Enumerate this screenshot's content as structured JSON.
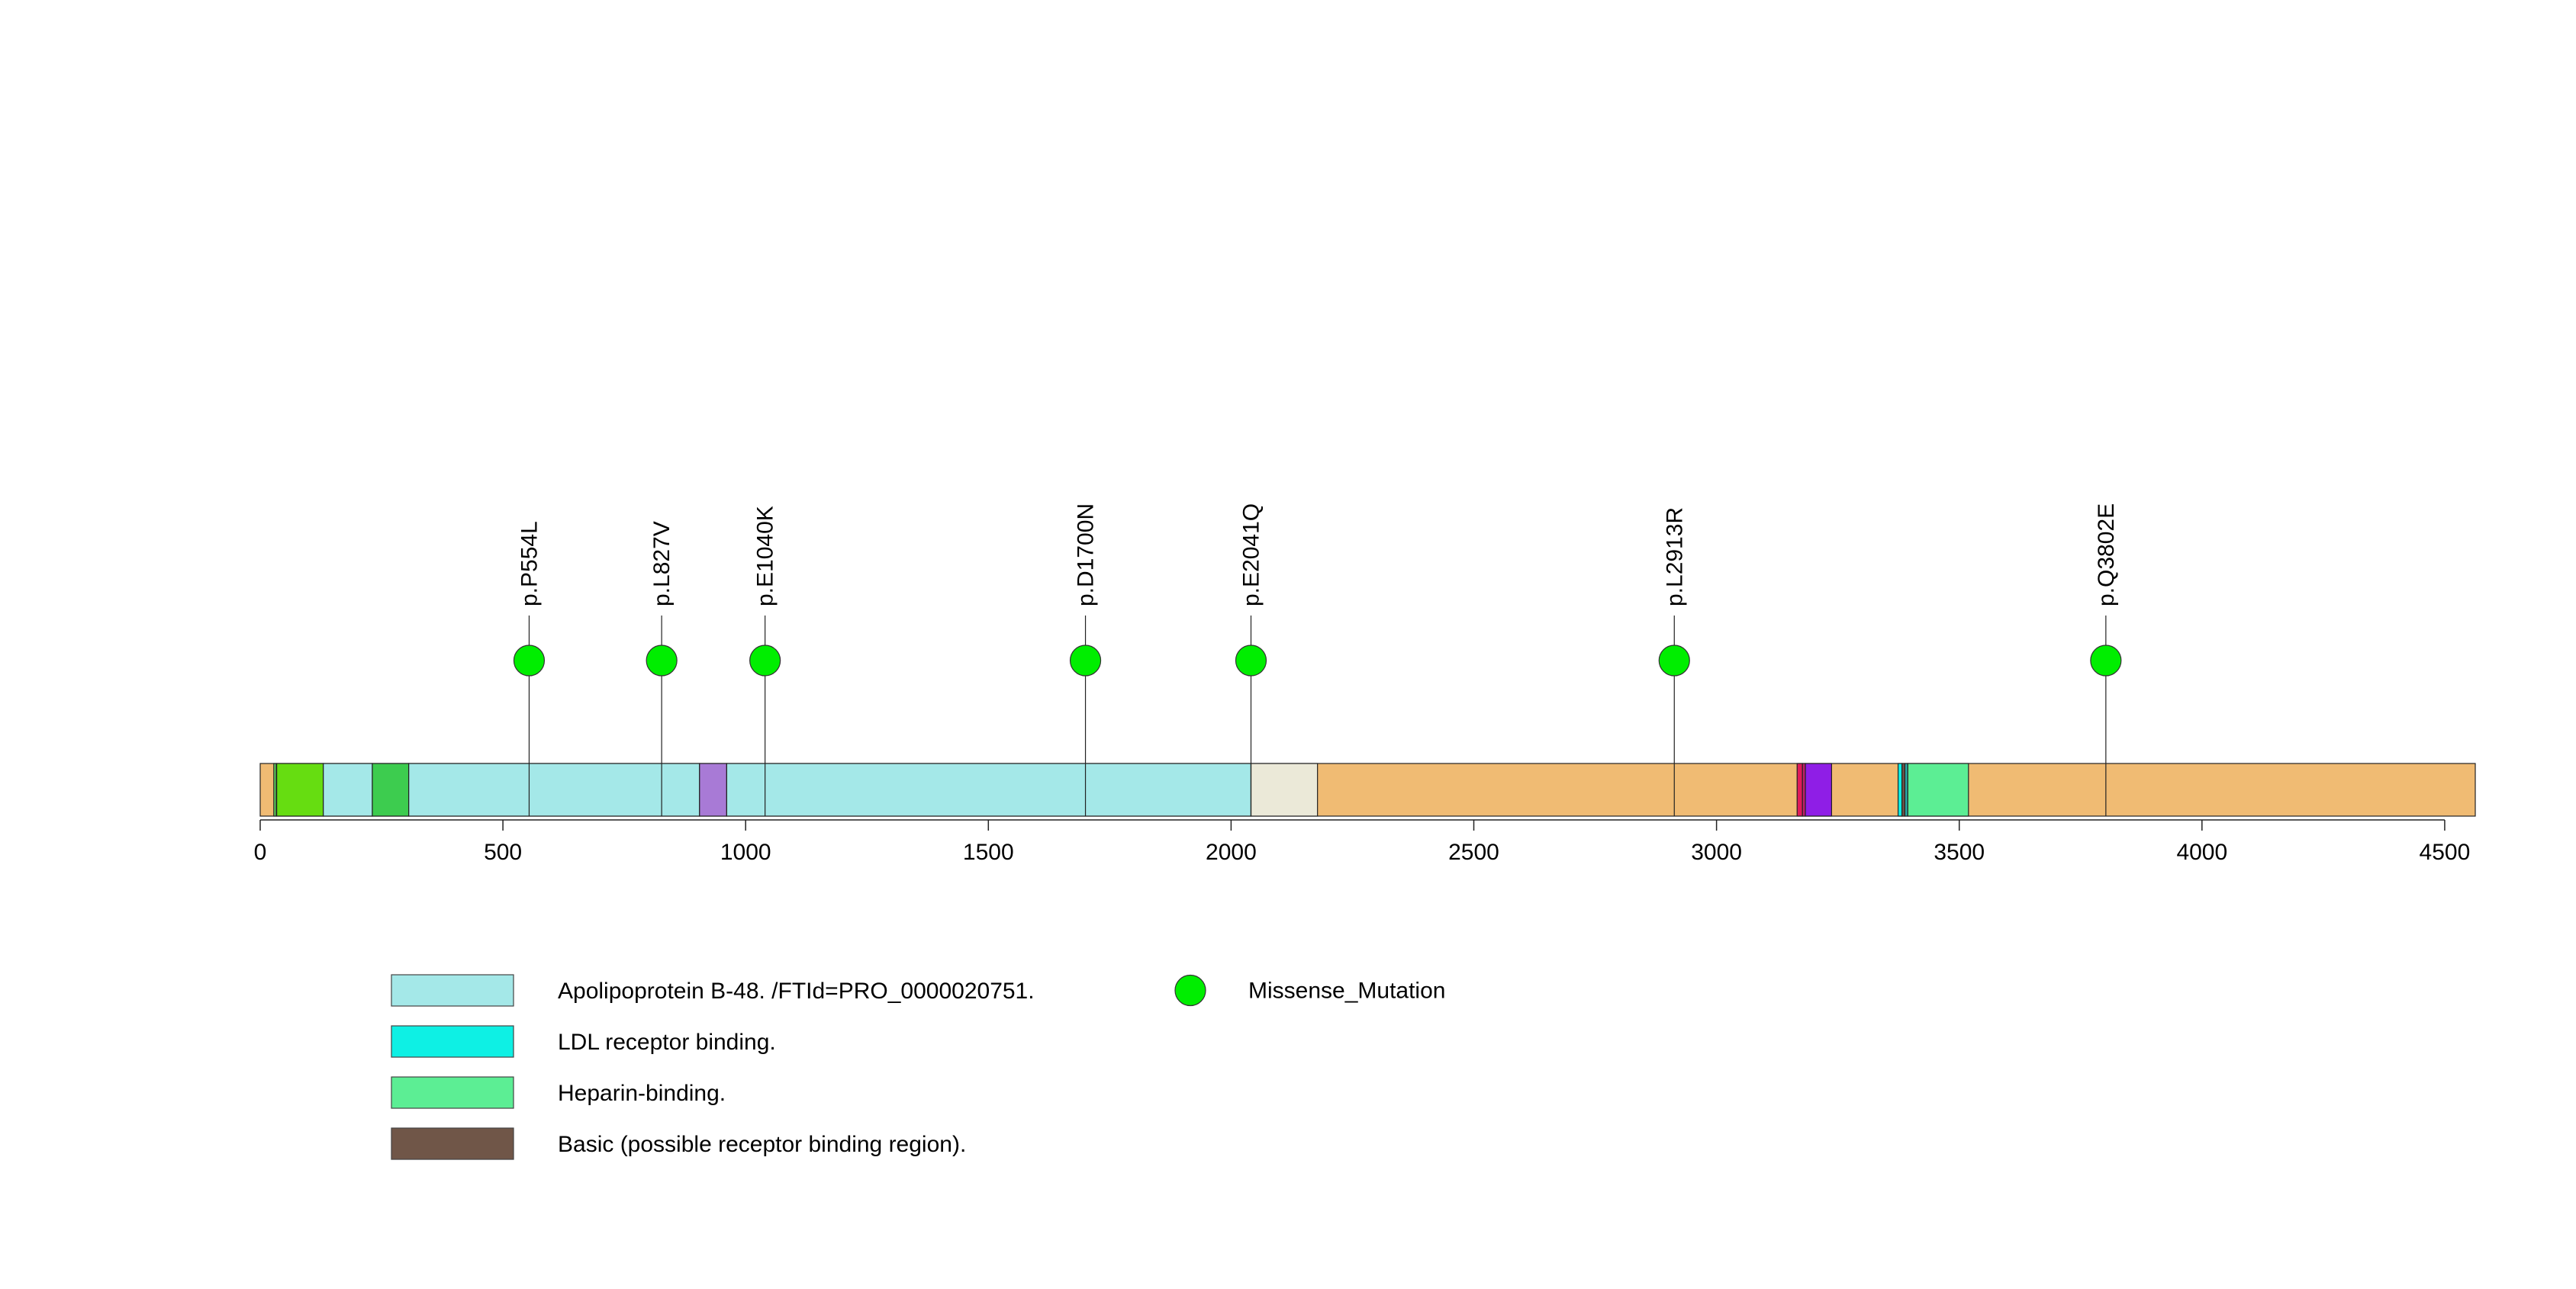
{
  "chart_data": {
    "type": "lollipop",
    "protein_length": 4563,
    "xlim": [
      0,
      4563
    ],
    "x_ticks": [
      0,
      500,
      1000,
      1500,
      2000,
      2500,
      3000,
      3500,
      4000,
      4500
    ],
    "backbone_color": "#f0bb73",
    "domains": [
      {
        "name": "segment-1",
        "start": 28,
        "end": 33,
        "color": "#5fd35f"
      },
      {
        "name": "segment-2",
        "start": 34,
        "end": 130,
        "color": "#66dd11"
      },
      {
        "name": "apolipoprotein-b48-a",
        "start": 130,
        "end": 231,
        "color": "#a4e8e8"
      },
      {
        "name": "segment-3",
        "start": 231,
        "end": 306,
        "color": "#3dcc4f"
      },
      {
        "name": "apolipoprotein-b48-b",
        "start": 306,
        "end": 905,
        "color": "#a4e8e8"
      },
      {
        "name": "segment-4",
        "start": 905,
        "end": 961,
        "color": "#a87ad6"
      },
      {
        "name": "apolipoprotein-b48-c",
        "start": 961,
        "end": 2041,
        "color": "#a4e8e8"
      },
      {
        "name": "segment-5",
        "start": 2041,
        "end": 2178,
        "color": "#ebe9d8"
      },
      {
        "name": "segment-6",
        "start": 3166,
        "end": 3177,
        "color": "#e01b5a"
      },
      {
        "name": "segment-7",
        "start": 3177,
        "end": 3183,
        "color": "#c22068"
      },
      {
        "name": "segment-8",
        "start": 3183,
        "end": 3237,
        "color": "#8f1ee6"
      },
      {
        "name": "ldl-receptor-binding",
        "start": 3374,
        "end": 3382,
        "color": "#0ef0e4"
      },
      {
        "name": "basic-region",
        "start": 3382,
        "end": 3388,
        "color": "#705648"
      },
      {
        "name": "segment-9",
        "start": 3388,
        "end": 3394,
        "color": "#2aa8a8"
      },
      {
        "name": "heparin-binding",
        "start": 3394,
        "end": 3519,
        "color": "#5cee94"
      }
    ],
    "mutations": [
      {
        "label": "p.P554L",
        "position": 554,
        "type": "Missense_Mutation"
      },
      {
        "label": "p.L827V",
        "position": 827,
        "type": "Missense_Mutation"
      },
      {
        "label": "p.E1040K",
        "position": 1040,
        "type": "Missense_Mutation"
      },
      {
        "label": "p.D1700N",
        "position": 1700,
        "type": "Missense_Mutation"
      },
      {
        "label": "p.E2041Q",
        "position": 2041,
        "type": "Missense_Mutation"
      },
      {
        "label": "p.L2913R",
        "position": 2913,
        "type": "Missense_Mutation"
      },
      {
        "label": "p.Q3802E",
        "position": 3802,
        "type": "Missense_Mutation"
      }
    ],
    "mutation_color": "#00ee00"
  },
  "legend": {
    "domains": [
      {
        "label": "Apolipoprotein B-48. /FTId=PRO_0000020751.",
        "color": "#a4e8e8"
      },
      {
        "label": "LDL receptor binding.",
        "color": "#0ef0e4"
      },
      {
        "label": "Heparin-binding.",
        "color": "#5cee94"
      },
      {
        "label": "Basic (possible receptor binding region).",
        "color": "#705648"
      }
    ],
    "mutation_types": [
      {
        "label": "Missense_Mutation",
        "color": "#00ee00"
      }
    ]
  }
}
